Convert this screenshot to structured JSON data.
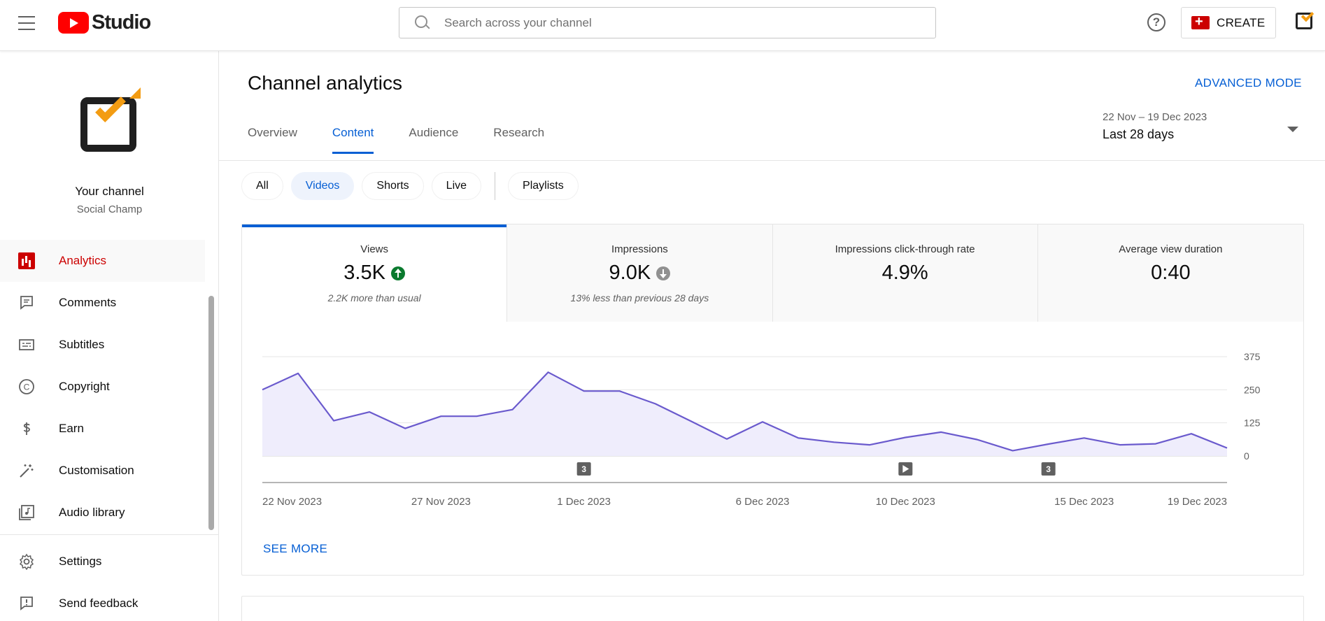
{
  "header": {
    "logo_text": "Studio",
    "search_placeholder": "Search across your channel",
    "help_label": "?",
    "create_label": "CREATE"
  },
  "sidebar": {
    "channel_title": "Your channel",
    "channel_name": "Social Champ",
    "items": [
      {
        "label": "Analytics",
        "icon": "analytics-icon",
        "active": true
      },
      {
        "label": "Comments",
        "icon": "comments-icon"
      },
      {
        "label": "Subtitles",
        "icon": "subtitles-icon"
      },
      {
        "label": "Copyright",
        "icon": "copyright-icon"
      },
      {
        "label": "Earn",
        "icon": "dollar-icon"
      },
      {
        "label": "Customisation",
        "icon": "magic-wand-icon"
      },
      {
        "label": "Audio library",
        "icon": "music-library-icon"
      }
    ],
    "bottom_items": [
      {
        "label": "Settings",
        "icon": "gear-icon"
      },
      {
        "label": "Send feedback",
        "icon": "feedback-icon"
      }
    ]
  },
  "main": {
    "title": "Channel analytics",
    "advanced_mode": "ADVANCED MODE",
    "tabs": [
      {
        "label": "Overview"
      },
      {
        "label": "Content",
        "active": true
      },
      {
        "label": "Audience"
      },
      {
        "label": "Research"
      }
    ],
    "date_range": {
      "dates": "22 Nov – 19 Dec 2023",
      "label": "Last 28 days"
    },
    "chips": [
      {
        "label": "All"
      },
      {
        "label": "Videos",
        "active": true
      },
      {
        "label": "Shorts"
      },
      {
        "label": "Live"
      }
    ],
    "playlists_chip": "Playlists",
    "metrics": [
      {
        "label": "Views",
        "value": "3.5K",
        "indicator": "up",
        "sub": "2.2K more than usual",
        "active": true
      },
      {
        "label": "Impressions",
        "value": "9.0K",
        "indicator": "down",
        "sub": "13% less than previous 28 days"
      },
      {
        "label": "Impressions click-through rate",
        "value": "4.9%",
        "indicator": "",
        "sub": ""
      },
      {
        "label": "Average view duration",
        "value": "0:40",
        "indicator": "",
        "sub": ""
      }
    ],
    "see_more": "SEE MORE"
  },
  "chart_data": {
    "type": "area",
    "title": "",
    "xlabel": "",
    "ylabel": "",
    "ylim": [
      0,
      375
    ],
    "y_ticks": [
      0,
      125,
      250,
      375
    ],
    "x_tick_labels": [
      "22 Nov 2023",
      "27 Nov 2023",
      "1 Dec 2023",
      "6 Dec 2023",
      "10 Dec 2023",
      "15 Dec 2023",
      "19 Dec 2023"
    ],
    "x_tick_days": [
      0,
      5,
      9,
      14,
      18,
      23,
      27
    ],
    "series": [
      {
        "days": [
          0,
          1,
          2,
          3,
          4,
          5,
          6,
          7,
          8,
          9,
          10,
          11,
          12,
          13,
          14,
          15,
          16,
          17,
          18,
          19,
          20,
          21,
          22,
          23,
          24,
          25,
          26,
          27
        ],
        "values": [
          250,
          312,
          133,
          166,
          104,
          150,
          150,
          175,
          316,
          245,
          245,
          197,
          131,
          64,
          129,
          68,
          52,
          42,
          70,
          90,
          62,
          20,
          45,
          68,
          42,
          46,
          84,
          30
        ]
      }
    ],
    "markers": [
      {
        "day": 9,
        "label": "3",
        "kind": "count"
      },
      {
        "day": 18,
        "label": "",
        "kind": "play"
      },
      {
        "day": 22,
        "label": "3",
        "kind": "count"
      }
    ],
    "line_color": "#6a5acd",
    "fill_color": "#efedfc",
    "grid": true
  }
}
